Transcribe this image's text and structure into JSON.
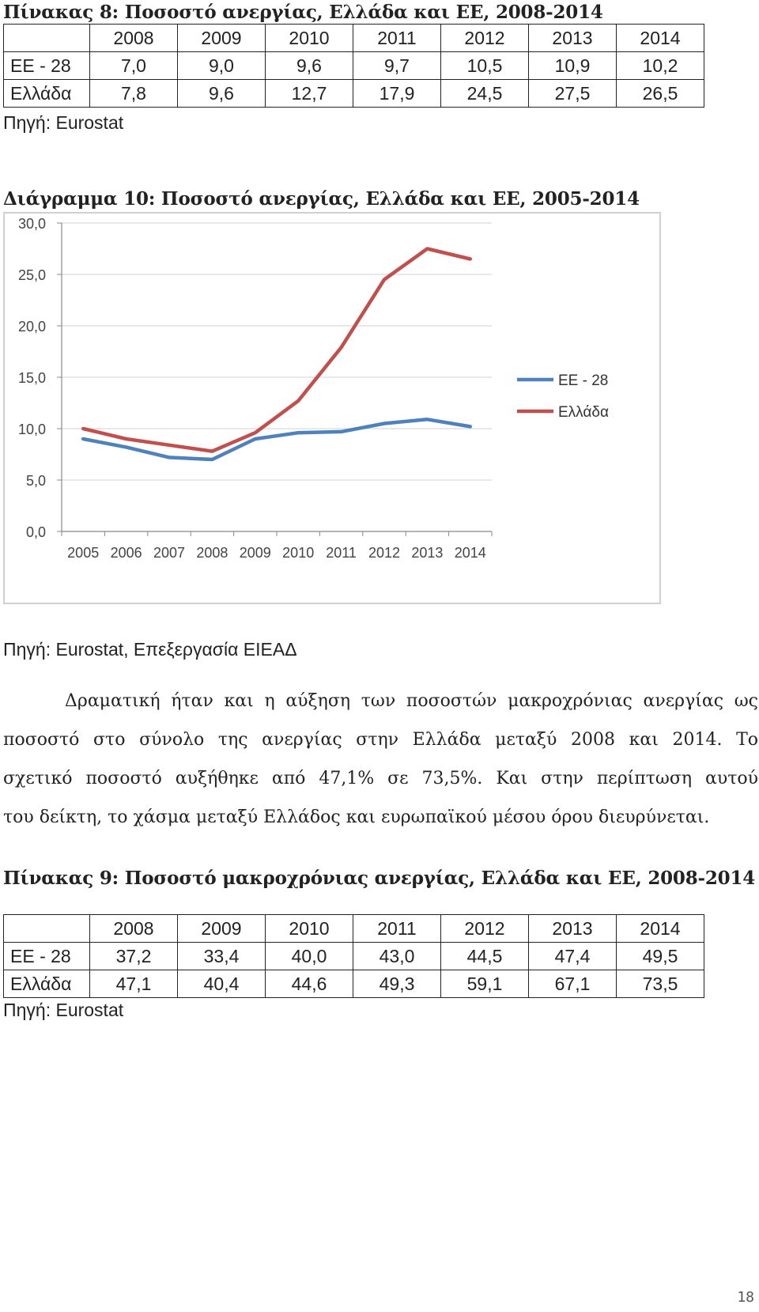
{
  "table8": {
    "caption": "Πίνακας 8: Ποσοστό ανεργίας, Ελλάδα και ΕΕ, 2008-2014",
    "years": [
      "2008",
      "2009",
      "2010",
      "2011",
      "2012",
      "2013",
      "2014"
    ],
    "rows": [
      {
        "label": "ΕΕ - 28",
        "values": [
          "7,0",
          "9,0",
          "9,6",
          "9,7",
          "10,5",
          "10,9",
          "10,2"
        ]
      },
      {
        "label": "Ελλάδα",
        "values": [
          "7,8",
          "9,6",
          "12,7",
          "17,9",
          "24,5",
          "27,5",
          "26,5"
        ]
      }
    ],
    "source": "Πηγή: Eurostat"
  },
  "chart_title": "Διάγραμμα 10: Ποσοστό ανεργίας, Ελλάδα και ΕΕ, 2005-2014",
  "chart_source": "Πηγή: Eurostat, Επεξεργασία ΕΙΕΑΔ",
  "chart_data": {
    "type": "line",
    "title": "Διάγραμμα 10: Ποσοστό ανεργίας, Ελλάδα και ΕΕ, 2005-2014",
    "xlabel": "",
    "ylabel": "",
    "categories": [
      "2005",
      "2006",
      "2007",
      "2008",
      "2009",
      "2010",
      "2011",
      "2012",
      "2013",
      "2014"
    ],
    "ylim": [
      0,
      30
    ],
    "yticks": [
      "0,0",
      "5,0",
      "10,0",
      "15,0",
      "20,0",
      "25,0",
      "30,0"
    ],
    "grid": true,
    "legend": "right",
    "series": [
      {
        "name": "ΕΕ - 28",
        "color": "#4f81bd",
        "values": [
          9.0,
          8.2,
          7.2,
          7.0,
          9.0,
          9.6,
          9.7,
          10.5,
          10.9,
          10.2
        ]
      },
      {
        "name": "Ελλάδα",
        "color": "#c0504d",
        "values": [
          10.0,
          9.0,
          8.4,
          7.8,
          9.6,
          12.7,
          17.9,
          24.5,
          27.5,
          26.5
        ]
      }
    ]
  },
  "paragraph": {
    "lines": [
      "Δραματική ήταν και η αύξηση των ποσοστών μακροχρόνιας ανεργίας ως",
      "ποσοστό στο σύνολο της ανεργίας στην Ελλάδα μεταξύ 2008 και 2014. Το",
      "σχετικό ποσοστό αυξήθηκε από 47,1% σε 73,5%. Και στην περίπτωση αυτού",
      "του δείκτη, το χάσμα μεταξύ Ελλάδος και ευρωπαϊκού μέσου όρου διευρύνεται."
    ]
  },
  "table9": {
    "caption": "Πίνακας 9: Ποσοστό μακροχρόνιας ανεργίας, Ελλάδα και ΕΕ, 2008-2014",
    "years": [
      "2008",
      "2009",
      "2010",
      "2011",
      "2012",
      "2013",
      "2014"
    ],
    "rows": [
      {
        "label": "ΕΕ - 28",
        "values": [
          "37,2",
          "33,4",
          "40,0",
          "43,0",
          "44,5",
          "47,4",
          "49,5"
        ]
      },
      {
        "label": "Ελλάδα",
        "values": [
          "47,1",
          "40,4",
          "44,6",
          "49,3",
          "59,1",
          "67,1",
          "73,5"
        ]
      }
    ],
    "source": "Πηγή: Eurostat"
  },
  "page_number": "18"
}
